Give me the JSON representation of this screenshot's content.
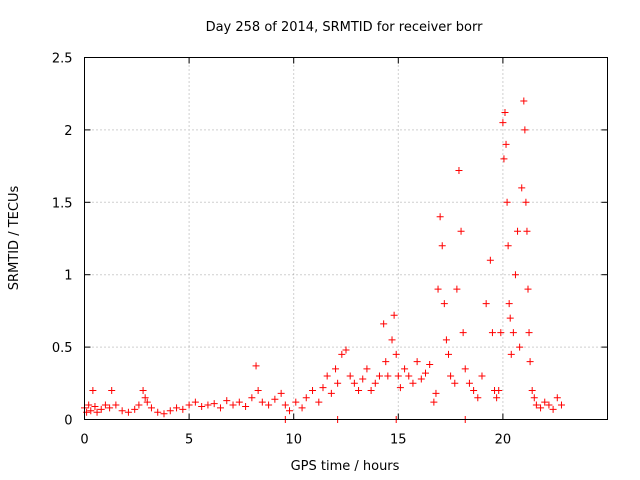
{
  "chart_data": {
    "type": "scatter",
    "title": "Day 258 of 2014, SRMTID for receiver borr",
    "xlabel": "GPS time / hours",
    "ylabel": "SRMTID / TECUs",
    "xlim": [
      0,
      25
    ],
    "ylim": [
      0,
      2.5
    ],
    "xticks": [
      0,
      5,
      10,
      15,
      20
    ],
    "yticks": [
      0,
      0.5,
      1,
      1.5,
      2,
      2.5
    ],
    "xtick_labels": [
      "0",
      "5",
      "10",
      "15",
      "20"
    ],
    "ytick_labels": [
      "0",
      "0.5",
      "1",
      "1.5",
      "2",
      "2.5"
    ],
    "grid": true,
    "marker": "+",
    "color": "#ff0000",
    "series": [
      {
        "name": "SRMTID",
        "x": [
          0.0,
          0.1,
          0.2,
          0.3,
          0.4,
          0.5,
          0.6,
          0.8,
          1.0,
          1.2,
          1.3,
          1.5,
          1.8,
          2.1,
          2.4,
          2.6,
          2.8,
          2.9,
          3.0,
          3.2,
          3.5,
          3.8,
          4.1,
          4.4,
          4.7,
          5.0,
          5.3,
          5.6,
          5.9,
          6.2,
          6.5,
          6.8,
          7.1,
          7.4,
          7.7,
          8.0,
          8.2,
          8.3,
          8.5,
          8.8,
          9.1,
          9.4,
          9.6,
          9.8,
          10.1,
          10.4,
          10.6,
          10.9,
          11.2,
          11.4,
          11.6,
          11.8,
          12.0,
          12.1,
          12.3,
          12.5,
          12.7,
          12.9,
          13.1,
          13.3,
          13.5,
          13.7,
          13.9,
          14.1,
          14.3,
          14.4,
          14.5,
          14.7,
          14.8,
          14.9,
          15.0,
          15.1,
          15.3,
          15.5,
          15.7,
          15.9,
          16.1,
          16.3,
          16.5,
          16.7,
          16.8,
          16.9,
          17.0,
          17.1,
          17.2,
          17.3,
          17.4,
          17.5,
          17.7,
          17.8,
          17.9,
          18.0,
          18.1,
          18.2,
          18.4,
          18.6,
          18.8,
          19.0,
          19.2,
          19.4,
          19.5,
          19.6,
          19.7,
          19.8,
          19.9,
          20.0,
          20.05,
          20.1,
          20.15,
          20.2,
          20.25,
          20.3,
          20.35,
          20.4,
          20.5,
          20.6,
          20.7,
          20.8,
          20.9,
          21.0,
          21.05,
          21.1,
          21.15,
          21.2,
          21.25,
          21.3,
          21.4,
          21.5,
          21.6,
          21.8,
          22.0,
          22.2,
          22.4,
          22.6,
          22.8,
          9.6,
          12.1,
          14.9,
          18.2
        ],
        "y": [
          0.08,
          0.05,
          0.1,
          0.06,
          0.2,
          0.09,
          0.05,
          0.07,
          0.1,
          0.08,
          0.2,
          0.1,
          0.06,
          0.05,
          0.07,
          0.1,
          0.2,
          0.15,
          0.12,
          0.08,
          0.05,
          0.04,
          0.06,
          0.08,
          0.07,
          0.1,
          0.12,
          0.09,
          0.1,
          0.11,
          0.08,
          0.13,
          0.1,
          0.12,
          0.09,
          0.15,
          0.37,
          0.2,
          0.12,
          0.1,
          0.14,
          0.18,
          0.1,
          0.06,
          0.12,
          0.08,
          0.15,
          0.2,
          0.12,
          0.22,
          0.3,
          0.18,
          0.35,
          0.25,
          0.45,
          0.48,
          0.3,
          0.25,
          0.2,
          0.28,
          0.35,
          0.2,
          0.25,
          0.3,
          0.66,
          0.4,
          0.3,
          0.55,
          0.72,
          0.45,
          0.3,
          0.22,
          0.35,
          0.3,
          0.25,
          0.4,
          0.28,
          0.32,
          0.38,
          0.12,
          0.18,
          0.9,
          1.4,
          1.2,
          0.8,
          0.55,
          0.45,
          0.3,
          0.25,
          0.9,
          1.72,
          1.3,
          0.6,
          0.35,
          0.25,
          0.2,
          0.15,
          0.3,
          0.8,
          1.1,
          0.6,
          0.2,
          0.15,
          0.2,
          0.6,
          2.05,
          1.8,
          2.12,
          1.9,
          1.5,
          1.2,
          0.8,
          0.7,
          0.45,
          0.6,
          1.0,
          1.3,
          0.5,
          1.6,
          2.2,
          2.0,
          1.5,
          1.3,
          0.9,
          0.6,
          0.4,
          0.2,
          0.15,
          0.1,
          0.08,
          0.12,
          0.1,
          0.07,
          0.15,
          0.1,
          0.0,
          0.0,
          0.0,
          0.0
        ]
      }
    ]
  }
}
